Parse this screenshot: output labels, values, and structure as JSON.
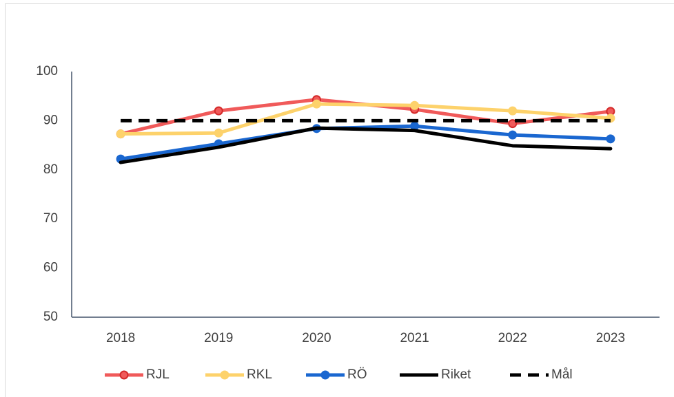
{
  "chart_data": {
    "type": "line",
    "categories": [
      "2018",
      "2019",
      "2020",
      "2021",
      "2022",
      "2023"
    ],
    "series": [
      {
        "name": "RJL",
        "color": "#f05a5a",
        "marker_edge": "#d42a2a",
        "markers": true,
        "dashed": false,
        "values": [
          87.3,
          92.0,
          94.3,
          92.3,
          89.4,
          91.9
        ]
      },
      {
        "name": "RKL",
        "color": "#fdd26b",
        "marker_edge": "#fdd26b",
        "markers": true,
        "dashed": false,
        "values": [
          87.3,
          87.5,
          93.4,
          93.1,
          92.0,
          90.5
        ]
      },
      {
        "name": "RÖ",
        "color": "#1a67d0",
        "marker_edge": "#1a67d0",
        "markers": true,
        "dashed": false,
        "values": [
          82.2,
          85.3,
          88.4,
          88.9,
          87.1,
          86.3
        ]
      },
      {
        "name": "Riket",
        "color": "#000000",
        "marker_edge": "#000000",
        "markers": false,
        "dashed": false,
        "values": [
          81.5,
          84.6,
          88.5,
          88.0,
          84.9,
          84.3
        ]
      },
      {
        "name": "Mål",
        "color": "#000000",
        "marker_edge": "#000000",
        "markers": false,
        "dashed": true,
        "values": [
          90,
          90,
          90,
          90,
          90,
          90
        ]
      }
    ],
    "ylim": [
      50,
      100
    ],
    "yticks": [
      50,
      60,
      70,
      80,
      90,
      100
    ],
    "grid": false,
    "legend": "bottom"
  }
}
